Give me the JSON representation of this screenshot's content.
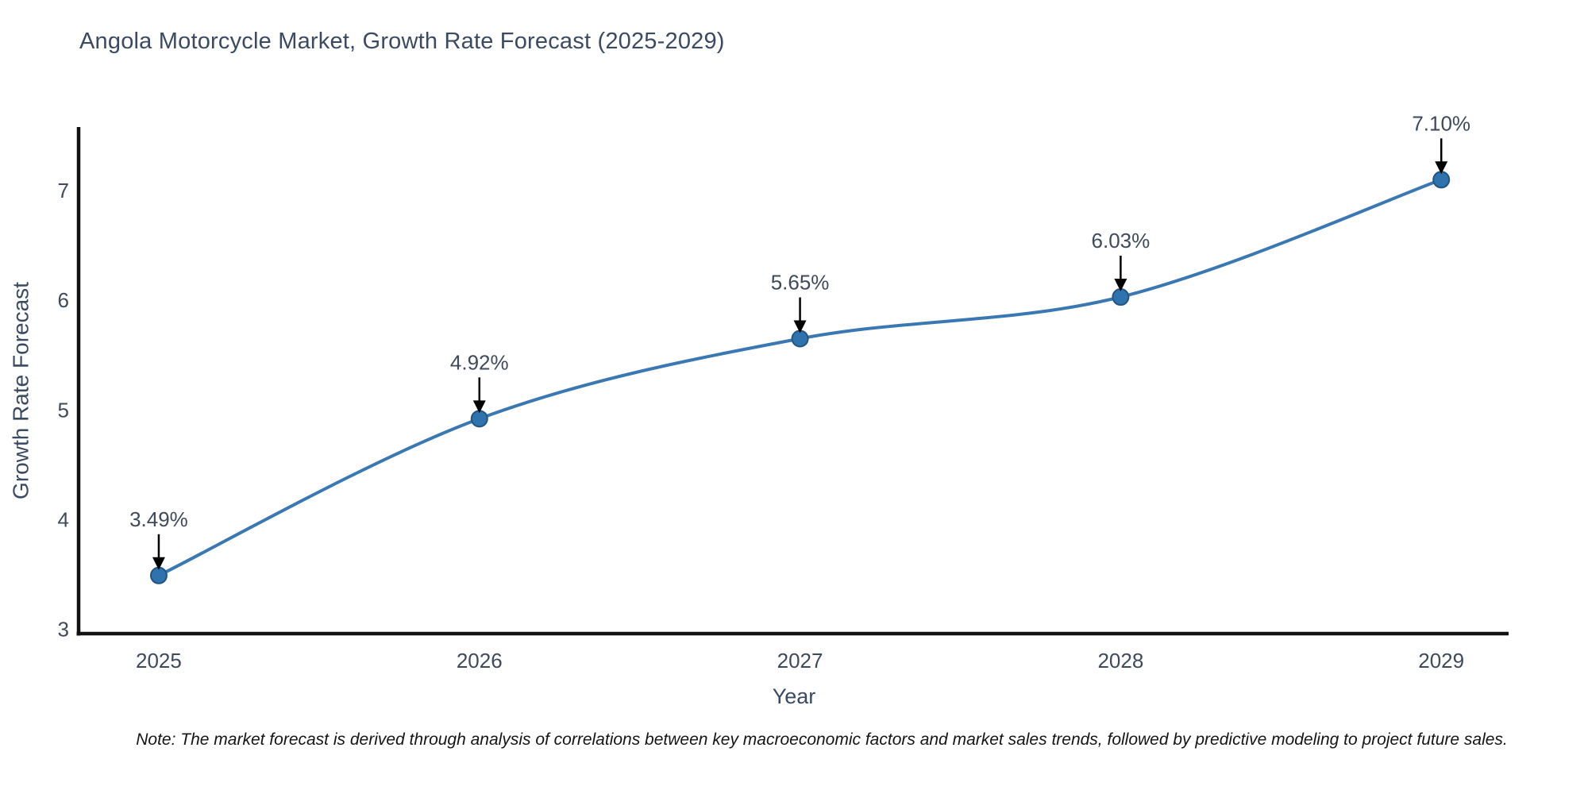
{
  "chart": {
    "title": "Angola Motorcycle Market, Growth Rate Forecast (2025-2029)",
    "xlabel": "Year",
    "ylabel": "Growth Rate Forecast",
    "note": "Note: The market forecast is derived through analysis of correlations between key macroeconomic factors and market sales trends, followed by predictive modeling to project future sales."
  },
  "chart_data": {
    "type": "line",
    "title": "Angola Motorcycle Market, Growth Rate Forecast (2025-2029)",
    "xlabel": "Year",
    "ylabel": "Growth Rate Forecast",
    "x": [
      2025,
      2026,
      2027,
      2028,
      2029
    ],
    "values": [
      3.49,
      4.92,
      5.65,
      6.03,
      7.1
    ],
    "point_labels": [
      "3.49%",
      "4.92%",
      "5.65%",
      "6.03%",
      "7.10%"
    ],
    "xticks": [
      "2025",
      "2026",
      "2027",
      "2028",
      "2029"
    ],
    "yticks": [
      3,
      4,
      5,
      6,
      7
    ],
    "xlim": [
      2024.75,
      2029.21
    ],
    "ylim": [
      2.96,
      7.58
    ],
    "grid": false,
    "legend": "none",
    "smooth": true,
    "line_color": "#3a78b3",
    "marker_fill": "#2e72ae",
    "marker_edge": "#24557f",
    "annotation_arrow_color": "#000000",
    "annotation_text_color": "#3e4a5c",
    "tick_color": "#3e4a5c",
    "spine_color": "#111111"
  }
}
